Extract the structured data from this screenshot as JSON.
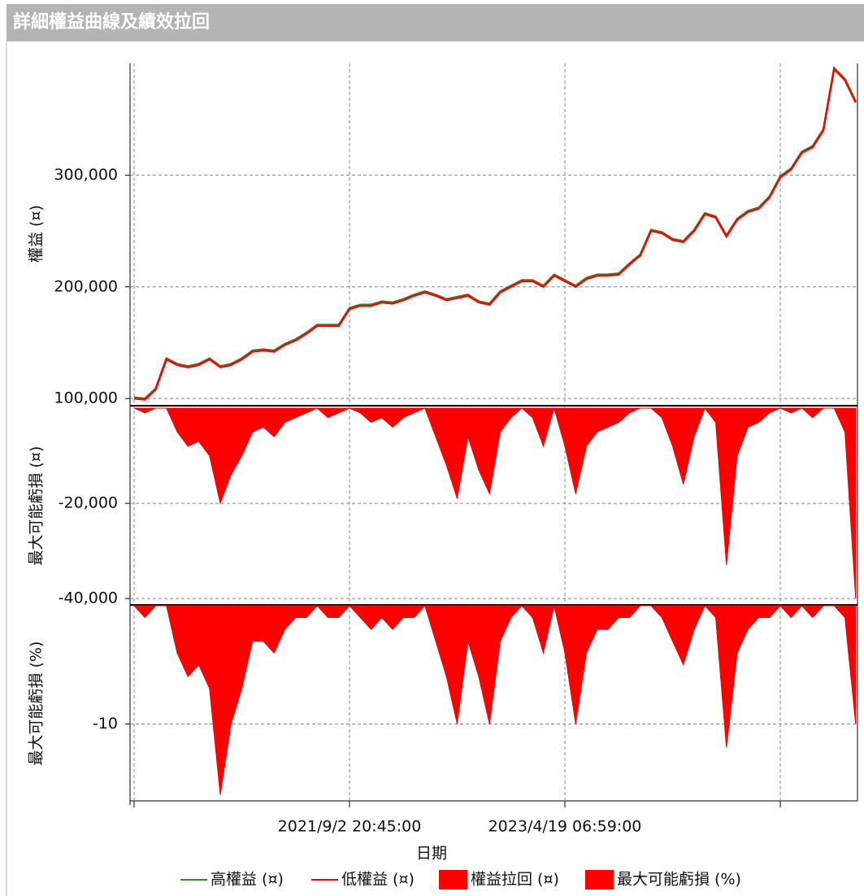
{
  "chart_data": [
    {
      "type": "line",
      "title": "詳細權益曲線及績效拉回",
      "y_label": "權益 (¤)",
      "ylim": [
        95000,
        400000
      ],
      "yticks": [
        {
          "value": 100000,
          "label": "100,000"
        },
        {
          "value": 200000,
          "label": "200,000"
        },
        {
          "value": 300000,
          "label": "300,000"
        }
      ],
      "grid": true,
      "series": [
        {
          "name": "高權益 (¤)",
          "color": "#2e8b2e",
          "values": [
            101000,
            100000,
            109000,
            136000,
            131000,
            129000,
            131000,
            136000,
            129000,
            131000,
            136000,
            143000,
            144000,
            143000,
            149000,
            153000,
            159000,
            166000,
            166000,
            166000,
            181000,
            184000,
            184000,
            187000,
            186000,
            189000,
            193000,
            196000,
            193000,
            189000,
            191000,
            193000,
            187000,
            185000,
            196000,
            201000,
            206000,
            206000,
            201000,
            211000,
            206000,
            201000,
            208000,
            211000,
            211000,
            212000,
            221000,
            229000,
            251000,
            249000,
            243000,
            241000,
            251000,
            266000,
            263000,
            246000,
            261000,
            268000,
            271000,
            281000,
            299000,
            306000,
            321000,
            326000,
            341000,
            396000,
            386000,
            366000
          ]
        },
        {
          "name": "低權益 (¤)",
          "color": "#ff0000",
          "values": [
            100000,
            99000,
            108000,
            135000,
            130000,
            128000,
            130000,
            135000,
            128000,
            130000,
            135000,
            142000,
            143000,
            142000,
            148000,
            152000,
            158000,
            165000,
            165000,
            165000,
            180000,
            183000,
            183000,
            186000,
            185000,
            188000,
            192000,
            195000,
            192000,
            188000,
            190000,
            192000,
            186000,
            184000,
            195000,
            200000,
            205000,
            205000,
            200000,
            210000,
            205000,
            200000,
            207000,
            210000,
            210000,
            211000,
            220000,
            228000,
            250000,
            248000,
            242000,
            240000,
            250000,
            265000,
            262000,
            245000,
            260000,
            267000,
            270000,
            280000,
            298000,
            305000,
            320000,
            325000,
            340000,
            395000,
            385000,
            365000
          ]
        }
      ]
    },
    {
      "type": "area",
      "y_label": "最大可能虧損 (¤)",
      "ylim": [
        -41000,
        0
      ],
      "yticks": [
        {
          "value": -20000,
          "label": "-20,000"
        },
        {
          "value": -40000,
          "label": "-40,000"
        }
      ],
      "grid": true,
      "series": [
        {
          "name": "權益拉回 (¤)",
          "color": "#ff0000",
          "values": [
            0,
            -1000,
            0,
            0,
            -5000,
            -8000,
            -7000,
            -10000,
            -20000,
            -14000,
            -10000,
            -5000,
            -4000,
            -6000,
            -3000,
            -2000,
            -1000,
            0,
            -2000,
            -1000,
            0,
            -1000,
            -3000,
            -2000,
            -4000,
            -2000,
            -1000,
            0,
            -6000,
            -12000,
            -19000,
            -6000,
            -13000,
            -18000,
            -5000,
            -2000,
            0,
            -2000,
            -8000,
            0,
            -8000,
            -18000,
            -8000,
            -5000,
            -4000,
            -3000,
            -1000,
            0,
            0,
            -2000,
            -8000,
            -16000,
            -6000,
            0,
            -3000,
            -33000,
            -10000,
            -4000,
            -3000,
            -1000,
            0,
            -1000,
            0,
            -2000,
            0,
            0,
            -5000,
            -40000
          ]
        }
      ]
    },
    {
      "type": "area",
      "y_label": "最大可能虧損 (%)",
      "x_label": "日期",
      "ylim": [
        -16.5,
        0
      ],
      "yticks": [
        -10
      ],
      "grid": true,
      "categories": [
        null,
        null,
        null,
        null,
        null,
        null,
        null,
        null,
        null,
        null,
        null,
        null,
        null,
        null,
        null,
        null,
        null,
        null,
        null,
        null,
        "2021/9/2 20:45:00",
        null,
        null,
        null,
        null,
        null,
        null,
        null,
        null,
        null,
        null,
        null,
        null,
        null,
        null,
        null,
        null,
        null,
        null,
        null,
        "2023/4/19 06:59:00",
        null,
        null,
        null,
        null,
        null,
        null,
        null,
        null,
        null,
        null,
        null,
        null,
        null,
        null,
        null,
        null,
        null,
        null,
        null,
        null,
        null,
        null,
        null,
        null,
        null,
        null,
        null
      ],
      "series": [
        {
          "name": "最大可能虧損 (%)",
          "color": "#ff0000",
          "values": [
            0,
            -1,
            0,
            0,
            -4,
            -6,
            -5,
            -7,
            -16,
            -10,
            -7,
            -3,
            -3,
            -4,
            -2,
            -1,
            -1,
            0,
            -1,
            -1,
            0,
            -1,
            -2,
            -1,
            -2,
            -1,
            -1,
            0,
            -3,
            -6,
            -10,
            -3,
            -6,
            -10,
            -3,
            -1,
            0,
            -1,
            -4,
            0,
            -4,
            -10,
            -4,
            -2,
            -2,
            -1,
            -1,
            0,
            0,
            -1,
            -3,
            -5,
            -2,
            0,
            -1,
            -12,
            -4,
            -2,
            -1,
            -1,
            0,
            -1,
            0,
            -1,
            0,
            0,
            -1,
            -10
          ]
        }
      ]
    }
  ]
}
